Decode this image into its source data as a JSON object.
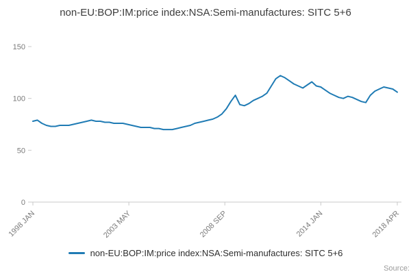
{
  "title": "non-EU:BOP:IM:price index:NSA:Semi-manufactures: SITC 5+6",
  "legend": {
    "label": "non-EU:BOP:IM:price index:NSA:Semi-manufactures: SITC 5+6"
  },
  "source_label": "Source:",
  "chart_data": {
    "type": "line",
    "title": "non-EU:BOP:IM:price index:NSA:Semi-manufactures: SITC 5+6",
    "series_name": "non-EU:BOP:IM:price index:NSA:Semi-manufactures: SITC 5+6",
    "line_color": "#1f7bb4",
    "grid": false,
    "legend_position": "bottom",
    "xlabel": "",
    "ylabel": "",
    "xlim": [
      1998.0,
      2018.25
    ],
    "ylim": [
      0,
      160
    ],
    "yticks": [
      0,
      50,
      100,
      150
    ],
    "xticks": [
      {
        "value": 1998.0,
        "label": "1998 JAN"
      },
      {
        "value": 2003.3333,
        "label": "2003 MAY"
      },
      {
        "value": 2008.6667,
        "label": "2008 SEP"
      },
      {
        "value": 2014.0,
        "label": "2014 JAN"
      },
      {
        "value": 2018.25,
        "label": "2018 APR"
      }
    ],
    "x": [
      1998.0,
      1998.25,
      1998.5,
      1998.75,
      1999.0,
      1999.25,
      1999.5,
      1999.75,
      2000.0,
      2000.25,
      2000.5,
      2000.75,
      2001.0,
      2001.25,
      2001.5,
      2001.75,
      2002.0,
      2002.25,
      2002.5,
      2002.75,
      2003.0,
      2003.25,
      2003.5,
      2003.75,
      2004.0,
      2004.25,
      2004.5,
      2004.75,
      2005.0,
      2005.25,
      2005.5,
      2005.75,
      2006.0,
      2006.25,
      2006.5,
      2006.75,
      2007.0,
      2007.25,
      2007.5,
      2007.75,
      2008.0,
      2008.25,
      2008.5,
      2008.75,
      2009.0,
      2009.25,
      2009.5,
      2009.75,
      2010.0,
      2010.25,
      2010.5,
      2010.75,
      2011.0,
      2011.25,
      2011.5,
      2011.75,
      2012.0,
      2012.25,
      2012.5,
      2012.75,
      2013.0,
      2013.25,
      2013.5,
      2013.75,
      2014.0,
      2014.25,
      2014.5,
      2014.75,
      2015.0,
      2015.25,
      2015.5,
      2015.75,
      2016.0,
      2016.25,
      2016.5,
      2016.75,
      2017.0,
      2017.25,
      2017.5,
      2017.75,
      2018.0,
      2018.25
    ],
    "values": [
      78,
      79,
      76,
      74,
      73,
      73,
      74,
      74,
      74,
      75,
      76,
      77,
      78,
      79,
      78,
      78,
      77,
      77,
      76,
      76,
      76,
      75,
      74,
      73,
      72,
      72,
      72,
      71,
      71,
      70,
      70,
      70,
      71,
      72,
      73,
      74,
      76,
      77,
      78,
      79,
      80,
      82,
      85,
      90,
      97,
      103,
      94,
      93,
      95,
      98,
      100,
      102,
      105,
      112,
      119,
      122,
      120,
      117,
      114,
      112,
      110,
      113,
      116,
      112,
      111,
      108,
      105,
      103,
      101,
      100,
      102,
      101,
      99,
      97,
      96,
      103,
      107,
      109,
      111,
      110,
      109,
      106
    ]
  }
}
